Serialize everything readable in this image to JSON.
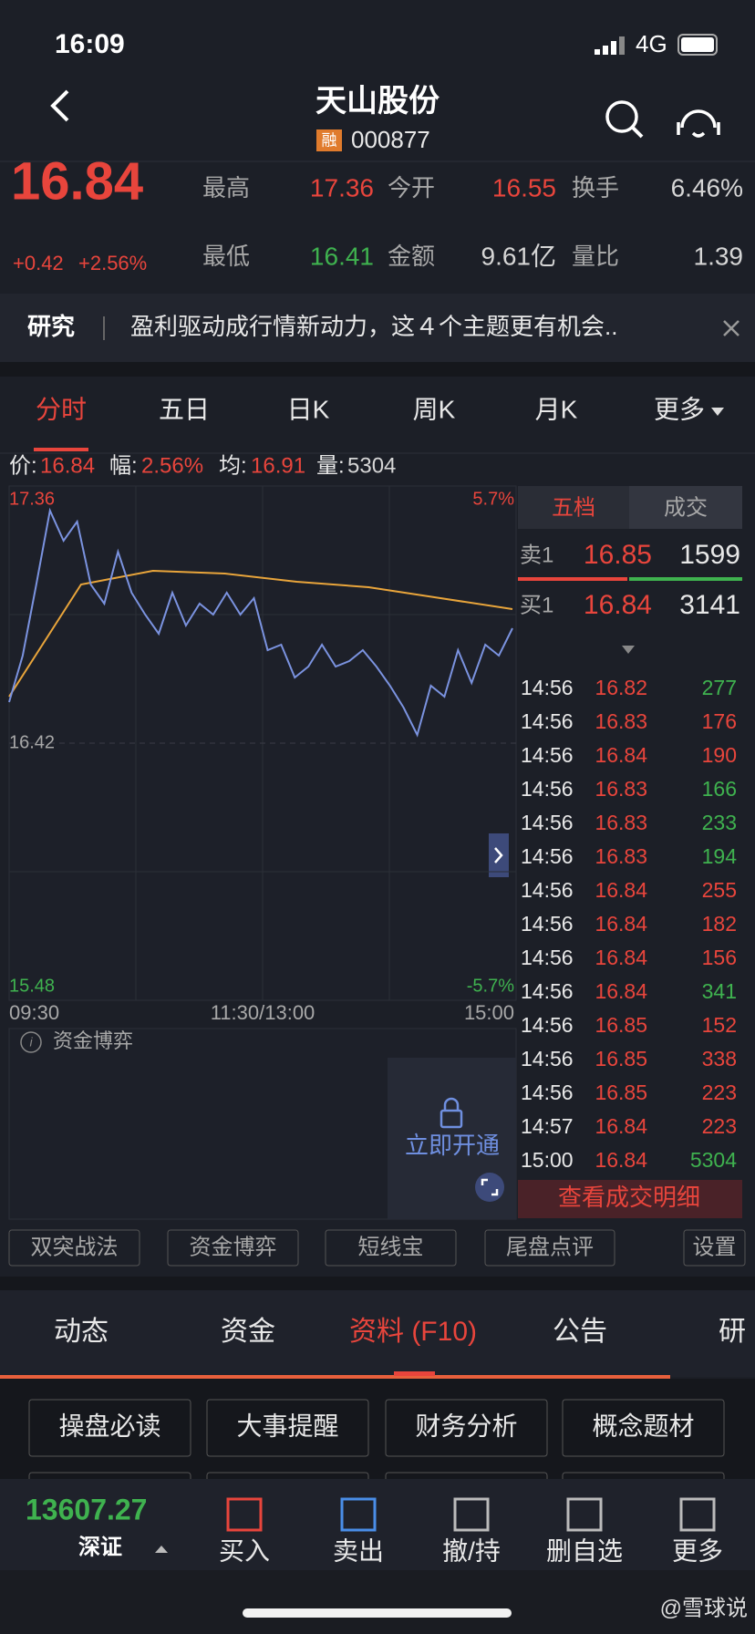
{
  "status": {
    "time": "16:09",
    "network": "4G"
  },
  "header": {
    "title": "天山股份",
    "badge": "融",
    "code": "000877"
  },
  "quote": {
    "price": "16.84",
    "change": "+0.42",
    "percent": "+2.56%",
    "stats": [
      [
        {
          "label": "最高",
          "value": "17.36",
          "tone": "up"
        },
        {
          "label": "今开",
          "value": "16.55",
          "tone": "up"
        },
        {
          "label": "换手",
          "value": "6.46%",
          "tone": "flat"
        }
      ],
      [
        {
          "label": "最低",
          "value": "16.41",
          "tone": "down"
        },
        {
          "label": "金额",
          "value": "9.61亿",
          "tone": "flat"
        },
        {
          "label": "量比",
          "value": "1.39",
          "tone": "flat"
        }
      ]
    ]
  },
  "research": {
    "tag": "研究",
    "text": "盈利驱动成行情新动力，这４个主题更有机会.."
  },
  "tabs": {
    "items": [
      "分时",
      "五日",
      "日K",
      "周K",
      "月K",
      "更多"
    ],
    "active": 0
  },
  "info": [
    {
      "label": "价:",
      "value": "16.84",
      "tone": "up"
    },
    {
      "label": "幅:",
      "value": "2.56%",
      "tone": "up"
    },
    {
      "label": "均:",
      "value": "16.91",
      "tone": "up"
    },
    {
      "label": "量:",
      "value": "5304",
      "tone": "flat"
    }
  ],
  "intraday": {
    "ylim": [
      15.48,
      17.36
    ],
    "yticks": [
      17.36,
      16.42,
      15.48
    ],
    "pct_labels": [
      "5.7%",
      "-5.7%"
    ],
    "x_labels": [
      "09:30",
      "11:30/13:00",
      "15:00"
    ],
    "price": [
      16.57,
      16.74,
      17.0,
      17.27,
      17.16,
      17.23,
      17.0,
      16.93,
      17.12,
      16.97,
      16.89,
      16.82,
      16.97,
      16.85,
      16.93,
      16.89,
      16.97,
      16.89,
      16.95,
      16.76,
      16.78,
      16.66,
      16.7,
      16.78,
      16.7,
      16.72,
      16.76,
      16.7,
      16.63,
      16.55,
      16.45,
      16.63,
      16.59,
      16.76,
      16.64,
      16.78,
      16.74,
      16.84
    ],
    "avg": [
      16.59,
      17.0,
      17.05,
      17.04,
      17.01,
      16.99,
      16.95,
      16.91
    ],
    "price_color": "#7b93e0",
    "avg_color": "#e9a53b"
  },
  "book": {
    "tabs": [
      "五档",
      "成交"
    ],
    "sell": {
      "label": "卖1",
      "price": "16.85",
      "volume": "1599"
    },
    "buy": {
      "label": "买1",
      "price": "16.84",
      "volume": "3141"
    },
    "trades": [
      {
        "time": "14:56",
        "price": "16.82",
        "volume": "277",
        "tone": "down"
      },
      {
        "time": "14:56",
        "price": "16.83",
        "volume": "176",
        "tone": "up"
      },
      {
        "time": "14:56",
        "price": "16.84",
        "volume": "190",
        "tone": "up"
      },
      {
        "time": "14:56",
        "price": "16.83",
        "volume": "166",
        "tone": "down"
      },
      {
        "time": "14:56",
        "price": "16.83",
        "volume": "233",
        "tone": "down"
      },
      {
        "time": "14:56",
        "price": "16.83",
        "volume": "194",
        "tone": "down"
      },
      {
        "time": "14:56",
        "price": "16.84",
        "volume": "255",
        "tone": "up"
      },
      {
        "time": "14:56",
        "price": "16.84",
        "volume": "182",
        "tone": "up"
      },
      {
        "time": "14:56",
        "price": "16.84",
        "volume": "156",
        "tone": "up"
      },
      {
        "time": "14:56",
        "price": "16.84",
        "volume": "341",
        "tone": "down"
      },
      {
        "time": "14:56",
        "price": "16.85",
        "volume": "152",
        "tone": "up"
      },
      {
        "time": "14:56",
        "price": "16.85",
        "volume": "338",
        "tone": "up"
      },
      {
        "time": "14:56",
        "price": "16.85",
        "volume": "223",
        "tone": "up"
      },
      {
        "time": "14:57",
        "price": "16.84",
        "volume": "223",
        "tone": "up"
      },
      {
        "time": "15:00",
        "price": "16.84",
        "volume": "5304",
        "tone": "down"
      }
    ],
    "button": "查看成交明细"
  },
  "flow": {
    "title": "资金博弈",
    "unlock": "立即开通"
  },
  "tools": [
    "双突战法",
    "资金博弈",
    "短线宝",
    "尾盘点评",
    "设置"
  ],
  "sections": {
    "tabs": [
      "动态",
      "资金",
      "资料 (F10)",
      "公告",
      "研"
    ],
    "active": 2,
    "buttons": [
      "操盘必读",
      "大事提醒",
      "财务分析",
      "概念题材"
    ]
  },
  "bottom": {
    "index": "13607.27",
    "market": "深证",
    "actions": [
      "买入",
      "卖出",
      "撤/持",
      "删自选",
      "更多"
    ]
  },
  "watermark": "@雪球说"
}
